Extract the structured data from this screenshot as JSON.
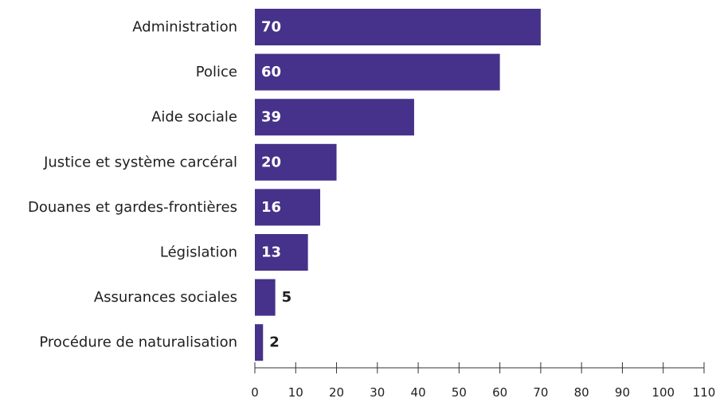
{
  "chart_data": {
    "type": "bar",
    "orientation": "horizontal",
    "categories": [
      "Administration",
      "Police",
      "Aide sociale",
      "Justice et système carcéral",
      "Douanes et gardes-frontières",
      "Législation",
      "Assurances sociales",
      "Procédure de naturalisation"
    ],
    "values": [
      70,
      60,
      39,
      20,
      16,
      13,
      5,
      2
    ],
    "value_labels": [
      "70",
      "60",
      "39",
      "20",
      "16",
      "13",
      "5",
      "2"
    ],
    "xlim": [
      0,
      110
    ],
    "ticks": [
      0,
      10,
      20,
      30,
      40,
      50,
      60,
      70,
      80,
      90,
      100,
      110
    ],
    "tick_labels": [
      "0",
      "10",
      "20",
      "30",
      "40",
      "50",
      "60",
      "70",
      "80",
      "90",
      "100",
      "110"
    ],
    "grid": false,
    "bar_color": "#46328a"
  }
}
